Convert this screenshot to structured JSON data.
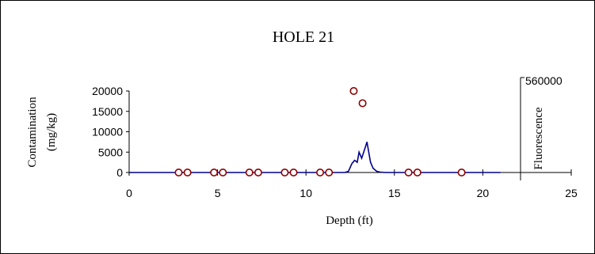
{
  "chart_data": {
    "type": "scatter",
    "title": "HOLE 21",
    "xlabel": "Depth (ft)",
    "ylabel_line1": "Contamination",
    "ylabel_line2": "(mg/kg)",
    "y2label": "Fluorescence",
    "y2max_label": "560000",
    "xlim": [
      0,
      25
    ],
    "ylim": [
      0,
      20000
    ],
    "x_ticks": [
      "0",
      "5",
      "10",
      "15",
      "20",
      "25"
    ],
    "y_ticks": [
      "0",
      "5000",
      "10000",
      "15000",
      "20000"
    ],
    "grid": false,
    "colors": {
      "contamination": "#8b0000",
      "fluorescence": "#00008b"
    },
    "series": [
      {
        "kind": "scatter",
        "x": [
          2.8,
          3.3,
          4.8,
          5.3,
          6.8,
          7.3,
          8.8,
          9.3,
          10.8,
          11.3,
          12.7,
          13.2,
          15.8,
          16.3,
          18.8
        ],
        "y": [
          0,
          0,
          0,
          0,
          0,
          0,
          0,
          0,
          0,
          0,
          20000,
          17000,
          0,
          0,
          0
        ]
      },
      {
        "kind": "line",
        "x": [
          0,
          12.2,
          12.4,
          12.6,
          12.75,
          12.9,
          13.0,
          13.15,
          13.3,
          13.45,
          13.55,
          13.65,
          13.8,
          14.0,
          14.2,
          14.5,
          15.0,
          21
        ],
        "y": [
          0,
          0,
          300,
          2200,
          3000,
          2500,
          5000,
          3500,
          5500,
          7500,
          5000,
          2500,
          1000,
          300,
          100,
          0,
          0,
          0
        ]
      }
    ]
  }
}
